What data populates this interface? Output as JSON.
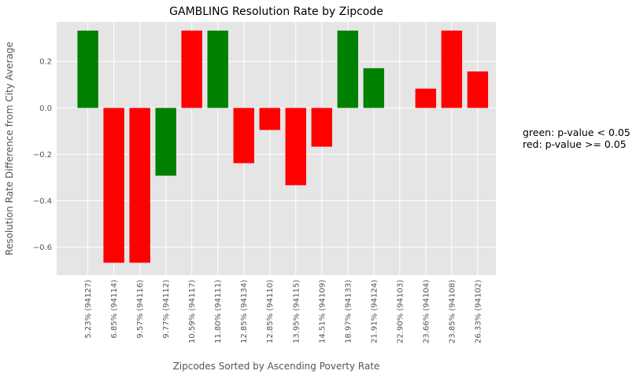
{
  "chart_data": {
    "type": "bar",
    "title": "GAMBLING Resolution Rate by Zipcode",
    "xlabel": "Zipcodes Sorted by Ascending Poverty Rate",
    "ylabel": "Resolution Rate Difference from City Average",
    "ylim": [
      -0.72,
      0.37
    ],
    "yticks": [
      0.2,
      0.0,
      -0.2,
      -0.4,
      -0.6
    ],
    "ytick_labels": [
      "0.2",
      "0.0",
      "−0.2",
      "−0.4",
      "−0.6"
    ],
    "grid": true,
    "categories": [
      "5.23%  (94127)",
      "6.85%  (94114)",
      "9.57%  (94116)",
      "9.77%  (94112)",
      "10.59%  (94117)",
      "11.80%  (94111)",
      "12.85%  (94134)",
      "12.85%  (94110)",
      "13.95%  (94115)",
      "14.51%  (94109)",
      "18.97%  (94133)",
      "21.91%  (94124)",
      "22.90%  (94103)",
      "23.66%  (94104)",
      "23.85%  (94108)",
      "26.33%  (94102)"
    ],
    "values": [
      0.333,
      -0.667,
      -0.667,
      -0.292,
      0.333,
      0.333,
      -0.238,
      -0.095,
      -0.333,
      -0.167,
      0.333,
      0.171,
      0.0,
      0.083,
      0.333,
      0.157
    ],
    "significant": [
      true,
      false,
      false,
      true,
      false,
      true,
      false,
      false,
      false,
      false,
      true,
      true,
      false,
      false,
      false,
      false
    ],
    "colors": {
      "significant": "#008000",
      "not_significant": "#ff0000",
      "plot_bg": "#e5e5e5",
      "grid": "#ffffff"
    },
    "legend": {
      "placement": "right",
      "entries": [
        "green: p-value < 0.05",
        "red: p-value >= 0.05"
      ]
    }
  }
}
